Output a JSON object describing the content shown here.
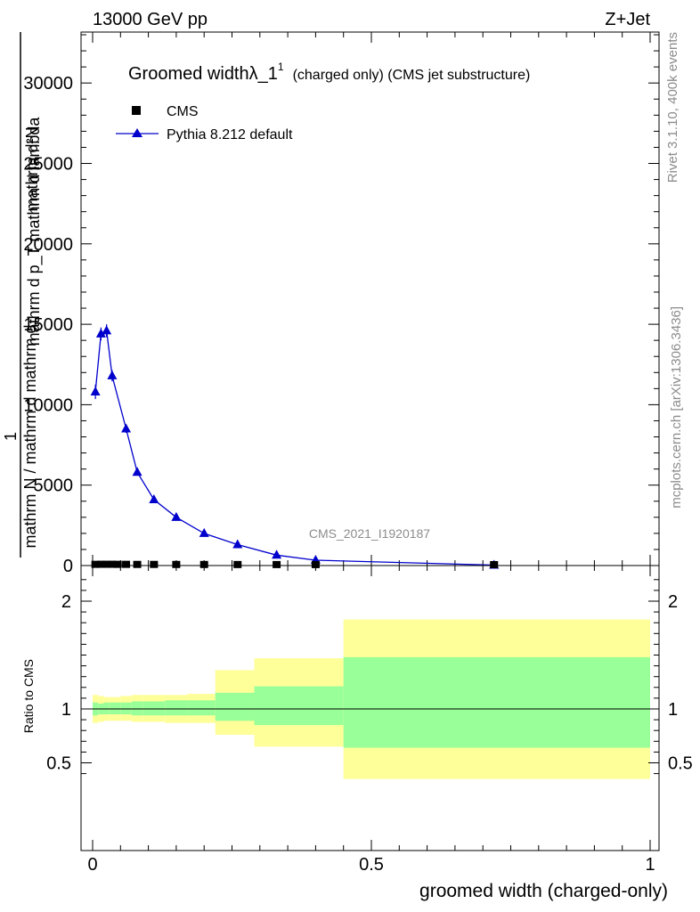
{
  "header": {
    "energy_label": "13000 GeV pp",
    "process_label": "Z+Jet"
  },
  "side_labels": {
    "rivet": "Rivet 3.1.10,  400k events",
    "mcplots": "mcplots.cern.ch [arXiv:1306.3436]"
  },
  "colors": {
    "mc_line": "#0000cc",
    "band_inner": "#99ff99",
    "band_outer": "#ffff99",
    "data": "#000000",
    "watermark": "#8c8c8c"
  },
  "chart_data": [
    {
      "type": "line",
      "title_main": "Groomed width",
      "title_symbol": "λ_1",
      "title_superscript": "1",
      "title_suffix": "(charged only) (CMS jet substructure)",
      "watermark": "CMS_2021_I1920187",
      "ylabel_numerator": "mathrm d²N",
      "ylabel_denominator": "mathrm d p_T mathrm d lambda",
      "ylabel_prefix": "1",
      "ylabel_prefix_denominator": "mathrm N / mathrm d mathrm d",
      "xlim": [
        0,
        1
      ],
      "ylim": [
        0,
        33000
      ],
      "ytick_labels": [
        "0",
        "5000",
        "10000",
        "15000",
        "20000",
        "25000",
        "30000"
      ],
      "legend_placement": "top-left",
      "series": [
        {
          "name": "CMS",
          "marker": "square",
          "x": [
            0.005,
            0.015,
            0.025,
            0.035,
            0.045,
            0.06,
            0.08,
            0.11,
            0.15,
            0.2,
            0.26,
            0.33,
            0.4,
            0.72
          ],
          "y": [
            20,
            25,
            25,
            25,
            20,
            20,
            15,
            15,
            12,
            10,
            8,
            6,
            4,
            1
          ]
        },
        {
          "name": "Pythia 8.212 default",
          "marker": "triangle",
          "x": [
            0.005,
            0.015,
            0.025,
            0.035,
            0.06,
            0.08,
            0.11,
            0.15,
            0.2,
            0.26,
            0.33,
            0.4,
            0.72
          ],
          "y": [
            10800,
            14400,
            14600,
            11800,
            8500,
            5800,
            4100,
            3000,
            2000,
            1300,
            650,
            330,
            30
          ],
          "yerr": [
            450,
            400,
            400,
            350,
            250,
            150,
            100,
            80,
            50,
            40,
            30,
            20,
            5
          ]
        }
      ]
    },
    {
      "type": "area",
      "ylabel": "Ratio to CMS",
      "xlabel": "groomed width (charged-only)",
      "xlim": [
        0,
        1
      ],
      "ylim": [
        0.35,
        2.25
      ],
      "xtick_labels": [
        "0",
        "0.5",
        "1"
      ],
      "ytick_labels": [
        "0.5",
        "1",
        "2"
      ],
      "reference_line": 1,
      "bands": {
        "edges": [
          0,
          0.01,
          0.02,
          0.03,
          0.05,
          0.07,
          0.09,
          0.13,
          0.17,
          0.22,
          0.29,
          0.45,
          1.0
        ],
        "inner_low": [
          0.94,
          0.95,
          0.95,
          0.95,
          0.95,
          0.94,
          0.94,
          0.94,
          0.94,
          0.89,
          0.85,
          0.64
        ],
        "inner_high": [
          1.06,
          1.05,
          1.06,
          1.06,
          1.06,
          1.07,
          1.07,
          1.08,
          1.08,
          1.15,
          1.21,
          1.48
        ],
        "outer_low": [
          0.87,
          0.88,
          0.89,
          0.89,
          0.89,
          0.88,
          0.88,
          0.87,
          0.87,
          0.76,
          0.65,
          0.35
        ],
        "outer_high": [
          1.13,
          1.12,
          1.11,
          1.11,
          1.12,
          1.13,
          1.13,
          1.13,
          1.14,
          1.36,
          1.47,
          1.83
        ]
      }
    }
  ]
}
